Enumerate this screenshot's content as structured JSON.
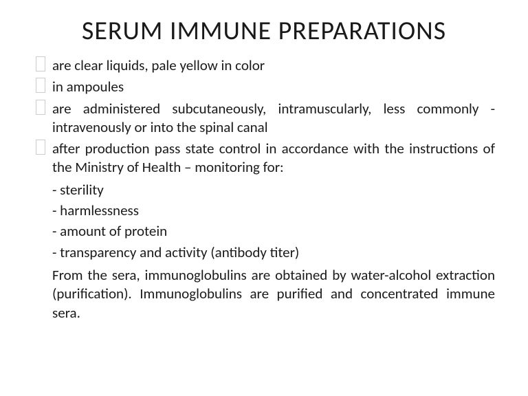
{
  "title": "SERUM IMMUNE PREPARATIONS",
  "bullets": [
    "are clear liquids, pale yellow in color",
    "in ampoules",
    "are administered subcutaneously, intramuscularly, less commonly - intravenously or into the spinal canal",
    "after production pass state control in accordance with the instructions of the Ministry of Health – monitoring for:"
  ],
  "subitems": [
    "- sterility",
    "- harmlessness",
    "- amount of protein",
    "- transparency and activity (antibody titer)"
  ],
  "paragraph": "From the sera, immunoglobulins are obtained by water-alcohol extraction (purification). Immunoglobulins are purified and concentrated immune sera.",
  "style": {
    "background_color": "#ffffff",
    "text_color": "#1a1a1a",
    "title_fontsize": 38,
    "body_fontsize": 21,
    "font_family": "Calibri"
  }
}
